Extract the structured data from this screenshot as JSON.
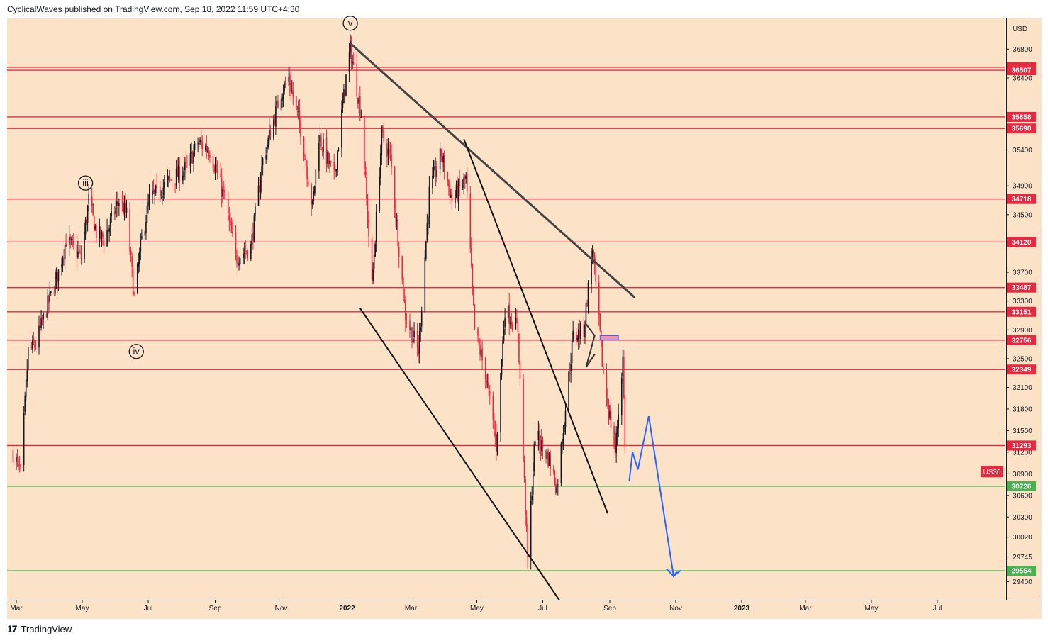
{
  "header": {
    "publisher_line": "CyclicalWaves published on TradingView.com, Sep 18, 2022 11:59 UTC+4:30"
  },
  "footer": {
    "brand": "TradingView",
    "logo_text": "17"
  },
  "colors": {
    "background": "#fce3c8",
    "resistance": "#e8283f",
    "support": "#4caf50",
    "forecast": "#2962ff",
    "candle": "#131722",
    "candle_down": "#e8283f"
  },
  "chart_data": {
    "type": "candlestick",
    "symbol_label": "US30",
    "currency": "USD",
    "ylim": [
      29400,
      37260
    ],
    "x_ticks": [
      "Mar",
      "May",
      "Jul",
      "Sep",
      "Nov",
      "2022",
      "Mar",
      "May",
      "Jul",
      "Sep",
      "Nov",
      "2023",
      "Mar",
      "May",
      "Jul"
    ],
    "y_ticks": [
      36800,
      36400,
      35400,
      34900,
      34500,
      33700,
      33300,
      32900,
      32500,
      32100,
      31800,
      31500,
      31200,
      30900,
      30600,
      30300,
      30020,
      29745,
      29400
    ],
    "resistance_levels": [
      36547,
      36507,
      35858,
      35698,
      34718,
      34120,
      33487,
      33151,
      32756,
      32349,
      31293
    ],
    "support_levels": [
      30726,
      29554
    ],
    "wave_labels": [
      {
        "label": "iii",
        "date": "2021-05-04",
        "price": 34940
      },
      {
        "label": "iv",
        "date": "2021-06-20",
        "price": 32600
      },
      {
        "label": "v",
        "date": "2022-01-04",
        "price": 37160
      }
    ],
    "price_path": [
      {
        "date": "2021-02-26",
        "price": 31200
      },
      {
        "date": "2021-03-05",
        "price": 30900
      },
      {
        "date": "2021-03-12",
        "price": 32600
      },
      {
        "date": "2021-03-19",
        "price": 32700
      },
      {
        "date": "2021-03-26",
        "price": 33050
      },
      {
        "date": "2021-04-09",
        "price": 33700
      },
      {
        "date": "2021-04-16",
        "price": 34150
      },
      {
        "date": "2021-04-30",
        "price": 33900
      },
      {
        "date": "2021-05-07",
        "price": 34700
      },
      {
        "date": "2021-05-14",
        "price": 34250
      },
      {
        "date": "2021-05-21",
        "price": 34150
      },
      {
        "date": "2021-06-04",
        "price": 34700
      },
      {
        "date": "2021-06-11",
        "price": 34500
      },
      {
        "date": "2021-06-18",
        "price": 33350
      },
      {
        "date": "2021-06-25",
        "price": 34150
      },
      {
        "date": "2021-07-02",
        "price": 34700
      },
      {
        "date": "2021-07-16",
        "price": 34900
      },
      {
        "date": "2021-07-23",
        "price": 35000
      },
      {
        "date": "2021-08-06",
        "price": 35150
      },
      {
        "date": "2021-08-16",
        "price": 35500
      },
      {
        "date": "2021-08-27",
        "price": 35400
      },
      {
        "date": "2021-09-10",
        "price": 34700
      },
      {
        "date": "2021-09-20",
        "price": 33900
      },
      {
        "date": "2021-10-04",
        "price": 34050
      },
      {
        "date": "2021-10-15",
        "price": 35250
      },
      {
        "date": "2021-11-01",
        "price": 36200
      },
      {
        "date": "2021-11-08",
        "price": 36400
      },
      {
        "date": "2021-11-19",
        "price": 35700
      },
      {
        "date": "2021-11-30",
        "price": 34600
      },
      {
        "date": "2021-12-06",
        "price": 35600
      },
      {
        "date": "2021-12-20",
        "price": 35000
      },
      {
        "date": "2021-12-31",
        "price": 36400
      },
      {
        "date": "2022-01-04",
        "price": 36800
      },
      {
        "date": "2022-01-14",
        "price": 35900
      },
      {
        "date": "2022-01-24",
        "price": 33500
      },
      {
        "date": "2022-02-02",
        "price": 35600
      },
      {
        "date": "2022-02-10",
        "price": 35300
      },
      {
        "date": "2022-02-24",
        "price": 33100
      },
      {
        "date": "2022-03-08",
        "price": 32600
      },
      {
        "date": "2022-03-18",
        "price": 34800
      },
      {
        "date": "2022-03-29",
        "price": 35350
      },
      {
        "date": "2022-04-08",
        "price": 34700
      },
      {
        "date": "2022-04-21",
        "price": 35000
      },
      {
        "date": "2022-04-29",
        "price": 32900
      },
      {
        "date": "2022-05-09",
        "price": 32300
      },
      {
        "date": "2022-05-19",
        "price": 31300
      },
      {
        "date": "2022-05-27",
        "price": 33200
      },
      {
        "date": "2022-06-08",
        "price": 32900
      },
      {
        "date": "2022-06-17",
        "price": 29700
      },
      {
        "date": "2022-06-24",
        "price": 31450
      },
      {
        "date": "2022-07-07",
        "price": 31100
      },
      {
        "date": "2022-07-14",
        "price": 30700
      },
      {
        "date": "2022-07-29",
        "price": 32800
      },
      {
        "date": "2022-08-08",
        "price": 32900
      },
      {
        "date": "2022-08-16",
        "price": 34050
      },
      {
        "date": "2022-08-26",
        "price": 32280
      },
      {
        "date": "2022-09-06",
        "price": 31200
      },
      {
        "date": "2022-09-13",
        "price": 32500
      },
      {
        "date": "2022-09-16",
        "price": 30800
      }
    ],
    "trendlines": [
      {
        "from": {
          "date": "2022-01-04",
          "price": 36880
        },
        "to": {
          "date": "2022-09-24",
          "price": 33350
        }
      },
      {
        "from": {
          "date": "2022-04-19",
          "price": 35550
        },
        "to": {
          "date": "2022-08-30",
          "price": 30350
        }
      },
      {
        "from": {
          "date": "2022-01-13",
          "price": 33200
        },
        "to": {
          "date": "2022-08-01",
          "price": 28800
        }
      }
    ],
    "forecast_path": [
      {
        "date": "2022-09-19",
        "price": 30800
      },
      {
        "date": "2022-09-22",
        "price": 31200
      },
      {
        "date": "2022-09-27",
        "price": 30960
      },
      {
        "date": "2022-10-07",
        "price": 31700
      },
      {
        "date": "2022-10-30",
        "price": 29480
      },
      {
        "date": "2022-11-02",
        "price": 29540
      }
    ],
    "flag_box": {
      "from": {
        "date": "2022-08-23",
        "price": 32820
      },
      "to": {
        "date": "2022-09-09",
        "price": 32760
      }
    }
  }
}
